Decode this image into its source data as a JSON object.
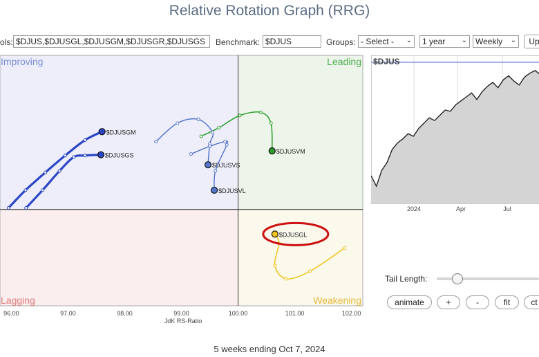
{
  "header": {
    "title": "Relative Rotation Graph (RRG)"
  },
  "controls": {
    "symbols_label": "ols:",
    "symbols_value": "$DJUS,$DJUSGL,$DJUSGM,$DJUSGR,$DJUSGS",
    "benchmark_label": "Benchmark:",
    "benchmark_value": "$DJUS",
    "groups_label": "Groups:",
    "groups_value": "- Select -",
    "period_value": "1 year",
    "interval_value": "Weekly",
    "update_label": "Up"
  },
  "side_panel": {
    "tail_length_label": "Tail Length:",
    "tail_length_value": 0.08,
    "buttons": {
      "animate": "animate",
      "plus": "+",
      "minus": "-",
      "fit": "fit",
      "more": "ct"
    }
  },
  "footer": {
    "text": "5 weeks ending Oct 7, 2024"
  },
  "colors": {
    "improving": "#eeeefa",
    "leading": "#edf4ea",
    "lagging": "#faeeee",
    "weakening": "#fbf8ec",
    "improving_text": "#7a8fd8",
    "leading_text": "#4caf50",
    "lagging_text": "#e07a7a",
    "weakening_text": "#e5b93a",
    "highlight": "#cc1111"
  },
  "chart_data": [
    {
      "type": "scatter",
      "subtype": "rrg",
      "xlabel": "JdK RS-Ratio",
      "ylabel": "",
      "xlim": [
        95.8,
        102.2
      ],
      "ylim": [
        98.75,
        102.0
      ],
      "center": [
        100.0,
        100.0
      ],
      "x_ticks": [
        "96.00",
        "97.00",
        "98.00",
        "99.00",
        "100.00",
        "101.00",
        "102.00"
      ],
      "quadrants": {
        "improving": "Improving",
        "leading": "Leading",
        "weakening": "Weakening",
        "lagging": "Lagging"
      },
      "series": [
        {
          "name": "$DJUSGM",
          "color": "#2b47c8",
          "thick": true,
          "x": [
            95.95,
            96.25,
            96.6,
            96.95,
            97.3,
            97.6
          ],
          "y": [
            100.02,
            100.25,
            100.48,
            100.7,
            100.9,
            101.01
          ]
        },
        {
          "name": "$DJUSGS",
          "color": "#2b47c8",
          "thick": true,
          "x": [
            96.26,
            96.55,
            96.85,
            97.1,
            97.3,
            97.58
          ],
          "y": [
            100.02,
            100.25,
            100.5,
            100.68,
            100.7,
            100.71
          ]
        },
        {
          "name": "$DJUSVM",
          "color": "#2a9d2a",
          "thick": false,
          "x": [
            99.35,
            99.66,
            100.03,
            100.4,
            100.58,
            100.6
          ],
          "y": [
            100.95,
            101.06,
            101.22,
            101.26,
            101.12,
            100.76
          ]
        },
        {
          "name": "$DJUSVS",
          "color": "#5577cc",
          "thick": false,
          "x": [
            98.55,
            98.93,
            99.3,
            99.55,
            99.5,
            99.47
          ],
          "y": [
            100.88,
            101.12,
            101.17,
            101.0,
            100.85,
            100.58
          ]
        },
        {
          "name": "$DJUSVL",
          "color": "#5577cc",
          "thick": false,
          "x": [
            99.17,
            99.5,
            99.77,
            99.8,
            99.6,
            99.58
          ],
          "y": [
            100.72,
            100.82,
            100.88,
            100.84,
            100.5,
            100.25
          ]
        },
        {
          "name": "$DJUSGL",
          "color": "#f0c419",
          "thick": false,
          "x": [
            101.88,
            101.27,
            100.85,
            100.65,
            100.72,
            100.65
          ],
          "y": [
            99.5,
            99.2,
            99.1,
            99.27,
            99.56,
            99.68
          ]
        }
      ],
      "highlight_label": "$DJUSGL"
    },
    {
      "type": "area",
      "title": "$DJUS",
      "x_ticks": [
        "2024",
        "Apr",
        "Jul"
      ],
      "values": [
        0.2,
        0.12,
        0.24,
        0.3,
        0.4,
        0.45,
        0.48,
        0.52,
        0.5,
        0.56,
        0.6,
        0.64,
        0.62,
        0.66,
        0.7,
        0.69,
        0.74,
        0.77,
        0.8,
        0.83,
        0.78,
        0.84,
        0.88,
        0.91,
        0.87,
        0.93,
        0.96,
        0.92,
        0.89,
        0.95,
        0.98,
        1.0,
        0.97
      ],
      "grid": true
    }
  ]
}
